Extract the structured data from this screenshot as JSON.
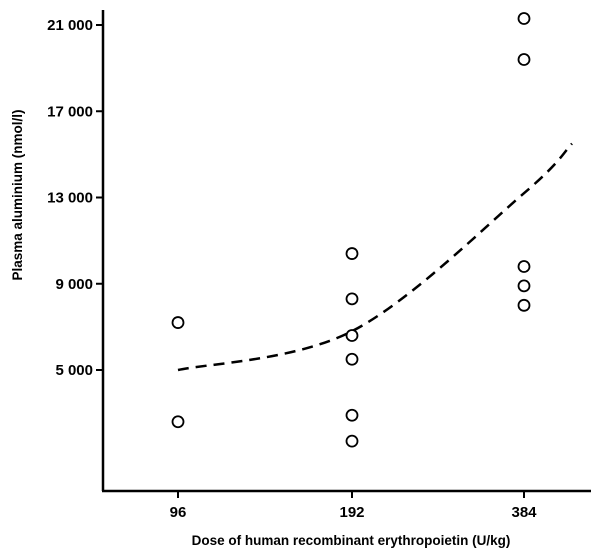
{
  "chart_data": {
    "type": "scatter",
    "title": "",
    "xlabel": "Dose of human recombinant erythropoietin (U/kg)",
    "ylabel": "Plasma aluminium (nmol/l)",
    "x_categories": [
      "96",
      "192",
      "384"
    ],
    "y_ticks": [
      {
        "value": 5000,
        "label": "5 000"
      },
      {
        "value": 9000,
        "label": "9 000"
      },
      {
        "value": 13000,
        "label": "13 000"
      },
      {
        "value": 17000,
        "label": "17 000"
      },
      {
        "value": 21000,
        "label": "21 000"
      }
    ],
    "ylim": [
      0,
      21300
    ],
    "grid": false,
    "legend": "none",
    "series": [
      {
        "marker": "open-circle",
        "points": [
          {
            "x": "96",
            "y": 7200
          },
          {
            "x": "96",
            "y": 2600
          },
          {
            "x": "192",
            "y": 10400
          },
          {
            "x": "192",
            "y": 8300
          },
          {
            "x": "192",
            "y": 6600
          },
          {
            "x": "192",
            "y": 5500
          },
          {
            "x": "192",
            "y": 2900
          },
          {
            "x": "192",
            "y": 1700
          },
          {
            "x": "384",
            "y": 21300
          },
          {
            "x": "384",
            "y": 19400
          },
          {
            "x": "384",
            "y": 9800
          },
          {
            "x": "384",
            "y": 8900
          },
          {
            "x": "384",
            "y": 8000
          }
        ]
      }
    ],
    "trend_line": {
      "style": "dashed",
      "points": [
        {
          "x": "96",
          "y": 5000
        },
        {
          "x": "192",
          "y": 6800
        },
        {
          "x": "384",
          "y": 13200
        },
        {
          "x": "end",
          "y": 15500
        }
      ]
    },
    "colors": {
      "ink": "#000000",
      "background": "#ffffff"
    }
  }
}
